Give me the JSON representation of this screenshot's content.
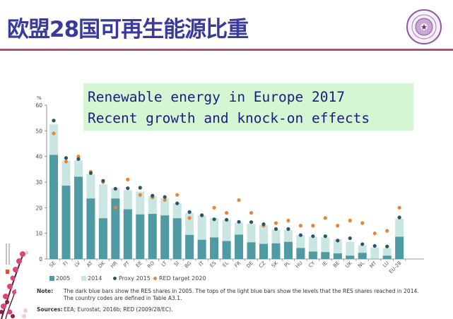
{
  "slide": {
    "title": "欧盟28国可再生能源比重",
    "callout": [
      "Renewable energy in Europe 2017",
      "Recent growth and knock-on effects"
    ]
  },
  "colors": {
    "title": "#3a3a9c",
    "rule": "#b9487c",
    "bar_2005": "#4f9aa3",
    "bar_2014": "#c9e6e3",
    "proxy_2015": "#2a5566",
    "target_2020": "#e8843a",
    "callout_bg": "#d5f6d3"
  },
  "chart_data": {
    "type": "bar",
    "ylabel": "%",
    "ylim": [
      0,
      60
    ],
    "yticks": [
      0,
      10,
      20,
      30,
      40,
      50,
      60
    ],
    "grid": false,
    "legend_position": "bottom-left",
    "categories": [
      "SE",
      "FI",
      "LV",
      "AT",
      "DK",
      "HR",
      "PT",
      "EE",
      "RO",
      "LT",
      "SI",
      "BG",
      "IT",
      "ES",
      "EL",
      "FR",
      "DE",
      "CZ",
      "SK",
      "PL",
      "HU",
      "CY",
      "IE",
      "BE",
      "UK",
      "NL",
      "MT",
      "LU",
      "EU-28"
    ],
    "series": [
      {
        "name": "2005",
        "kind": "bar",
        "values": [
          40.6,
          28.6,
          32.1,
          23.6,
          15.9,
          23.6,
          19.4,
          17.4,
          17.6,
          17.0,
          15.9,
          9.4,
          7.5,
          8.4,
          7.0,
          9.5,
          6.5,
          5.9,
          6.1,
          6.7,
          4.3,
          2.9,
          2.7,
          2.2,
          1.3,
          2.4,
          0.1,
          1.3,
          8.7
        ]
      },
      {
        "name": "2014",
        "kind": "bar",
        "values": [
          52.5,
          38.4,
          38.5,
          33.0,
          29.1,
          27.7,
          26.9,
          26.3,
          24.5,
          23.8,
          21.8,
          17.9,
          17.0,
          16.0,
          15.3,
          14.2,
          13.7,
          13.2,
          11.5,
          11.3,
          9.4,
          8.7,
          8.4,
          7.7,
          6.7,
          5.4,
          4.5,
          4.3,
          15.7
        ]
      },
      {
        "name": "Proxy 2015",
        "kind": "point",
        "values": [
          54.0,
          39.4,
          39.0,
          33.5,
          30.5,
          27.4,
          27.6,
          27.8,
          24.7,
          24.2,
          21.7,
          18.3,
          17.1,
          15.5,
          15.3,
          14.5,
          14.4,
          13.6,
          11.7,
          11.7,
          9.3,
          8.9,
          8.9,
          7.2,
          8.1,
          5.8,
          5.1,
          4.9,
          16.2
        ]
      },
      {
        "name": "RED target 2020",
        "kind": "point",
        "values": [
          49,
          38,
          40,
          34,
          30,
          20,
          31,
          25,
          24,
          23,
          25,
          16,
          17,
          20,
          18,
          23,
          18,
          13,
          14,
          15,
          13,
          13,
          16,
          13,
          15,
          14,
          10,
          11,
          20
        ]
      }
    ]
  },
  "legend": {
    "items": [
      "2005",
      "2014",
      "Proxy 2015",
      "RED target 2020"
    ]
  },
  "footer": {
    "note_label": "Note:",
    "note_text": [
      "The dark blue bars show the RES shares in 2005. The tops of the light blue bars show the levels that the RES shares reached in 2014.",
      "The country codes are defined in Table A3.1."
    ],
    "sources_label": "Sources:",
    "sources_text": "EEA; Eurostat, 2016b; RED (2009/28/EC)."
  }
}
